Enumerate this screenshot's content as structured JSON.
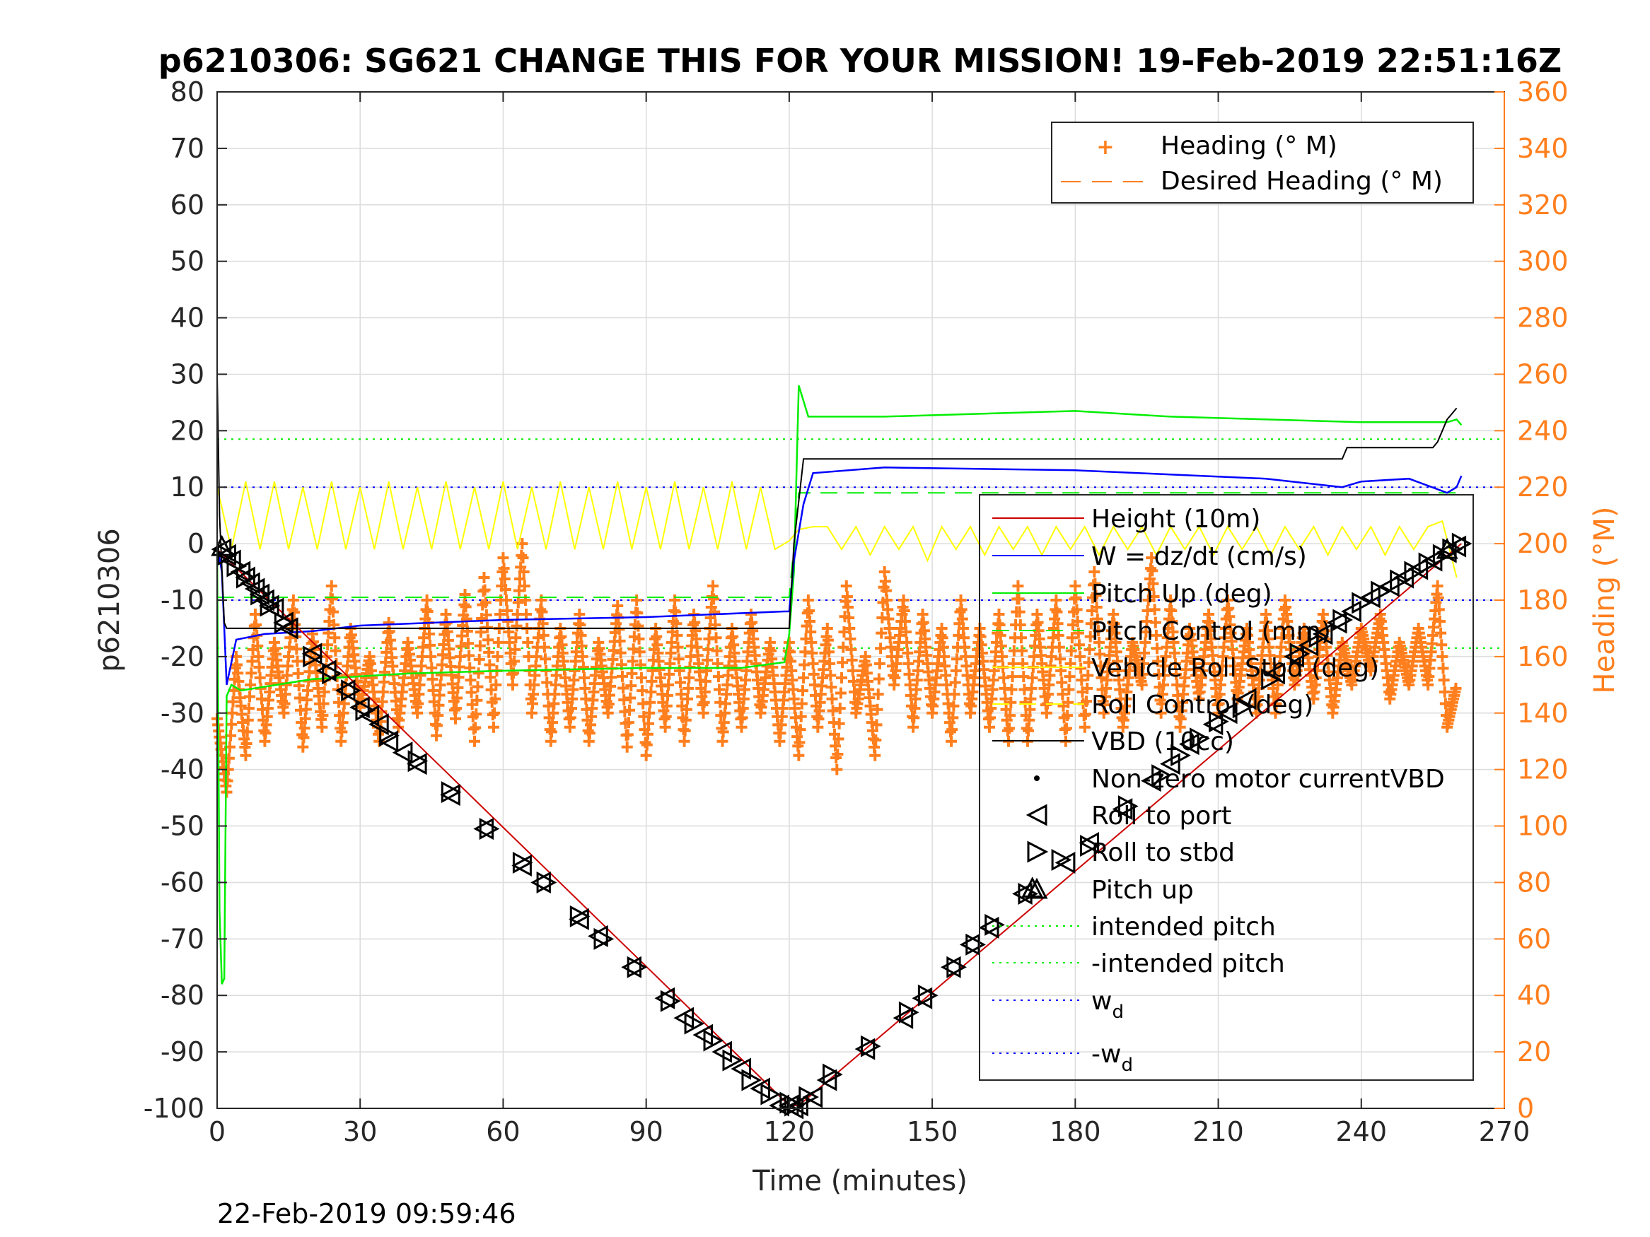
{
  "chart_data": {
    "type": "line",
    "title": "p6210306: SG621 CHANGE THIS FOR YOUR MISSION! 19-Feb-2019 22:51:16Z",
    "footer": "22-Feb-2019 09:59:46",
    "xlabel": "Time (minutes)",
    "ylabel": "p6210306",
    "y2label": "Heading (°M)",
    "xlim": [
      0,
      270
    ],
    "ylim": [
      -100,
      80
    ],
    "y2lim": [
      0,
      360
    ],
    "xticks": [
      "0",
      "30",
      "60",
      "90",
      "120",
      "150",
      "180",
      "210",
      "240",
      "270"
    ],
    "yticks": [
      "80",
      "70",
      "60",
      "50",
      "40",
      "30",
      "20",
      "10",
      "0",
      "-10",
      "-20",
      "-30",
      "-40",
      "-50",
      "-60",
      "-70",
      "-80",
      "-90",
      "-100"
    ],
    "y2ticks": [
      "360",
      "340",
      "320",
      "300",
      "280",
      "260",
      "240",
      "220",
      "200",
      "180",
      "160",
      "140",
      "120",
      "100",
      "80",
      "60",
      "40",
      "20",
      "0"
    ],
    "grid": true,
    "colors": {
      "height": "#cc0000",
      "w": "#0000ff",
      "pitch_up": "#00ee00",
      "pitch_control": "#00ee00",
      "roll": "#ffff00",
      "vbd": "#000000",
      "heading": "#ff7f1e",
      "right_axis": "#ff7f1e"
    },
    "legend_heading": {
      "placement": "top-right",
      "entries": [
        "Heading (° M)",
        "Desired Heading (° M)"
      ]
    },
    "legend_main": {
      "placement": "right",
      "entries": [
        "Height (10m)",
        "W = dz/dt (cm/s)",
        "Pitch Up (deg)",
        "Pitch Control (mm)",
        "Vehicle Roll Stbd (deg)",
        "Roll Control (deg)",
        "VBD (10cc)",
        "Non-zero motor currentVBD",
        "Roll to port",
        "Roll to stbd",
        "Pitch up",
        "intended pitch",
        "-intended pitch",
        "w",
        "-w"
      ],
      "subscript": "d"
    },
    "series": [
      {
        "name": "Height (10m)",
        "x": [
          0,
          120,
          122,
          261
        ],
        "y": [
          -1,
          -99.5,
          -99.5,
          0
        ]
      },
      {
        "name": "W = dz/dt (cm/s)",
        "x": [
          0,
          1,
          2,
          4,
          10,
          20,
          30,
          60,
          90,
          119,
          120,
          121,
          123,
          125,
          140,
          180,
          220,
          236,
          240,
          250,
          258,
          260,
          261
        ],
        "y": [
          0,
          -5,
          -25,
          -17,
          -16,
          -15.5,
          -14.5,
          -13.5,
          -13,
          -12,
          -12,
          -3,
          7,
          12.5,
          13.5,
          13,
          11.5,
          10,
          11,
          11.5,
          9,
          10,
          12
        ]
      },
      {
        "name": "Pitch Up (deg)",
        "x": [
          0,
          0.5,
          1,
          1.5,
          2,
          3,
          5,
          20,
          40,
          60,
          90,
          110,
          119,
          120,
          121,
          122,
          124,
          140,
          160,
          180,
          200,
          240,
          258,
          260,
          261
        ],
        "y": [
          -1,
          -65,
          -78,
          -77,
          -27,
          -25,
          -26,
          -24,
          -23,
          -22.5,
          -22,
          -22,
          -21,
          -16,
          -5,
          28,
          22.5,
          22.5,
          23,
          23.5,
          22.5,
          21.5,
          21.5,
          22,
          21
        ]
      },
      {
        "name": "Pitch Control (mm)",
        "x": [
          0,
          120,
          122,
          261
        ],
        "y": [
          -9.5,
          -9.5,
          9,
          9
        ]
      },
      {
        "name": "Roll Control (deg)",
        "x": [
          0,
          3,
          6,
          9,
          12,
          15,
          18,
          21,
          24,
          27,
          30,
          33,
          36,
          39,
          42,
          45,
          48,
          51,
          54,
          57,
          60,
          63,
          66,
          69,
          72,
          75,
          78,
          81,
          84,
          87,
          90,
          93,
          96,
          99,
          102,
          105,
          108,
          111,
          114,
          117,
          120,
          122,
          125,
          128,
          131,
          134,
          137,
          140,
          143,
          146,
          149,
          152,
          155,
          158,
          161,
          164,
          167,
          170,
          173,
          176,
          179,
          182,
          185,
          188,
          191,
          194,
          197,
          200,
          203,
          206,
          209,
          212,
          215,
          218,
          221,
          224,
          227,
          230,
          233,
          236,
          239,
          242,
          245,
          248,
          251,
          254,
          257,
          260
        ],
        "y": [
          10,
          -1,
          11,
          -1,
          11,
          -1,
          10,
          -1,
          11,
          -1,
          10,
          -1,
          11,
          -1,
          10,
          -1,
          11,
          -1,
          10,
          -1,
          11,
          -1,
          10,
          -1,
          11,
          -1,
          10,
          -1,
          11,
          -1,
          10,
          -1,
          11,
          -1,
          10,
          -1,
          11,
          -1,
          10,
          -1,
          0.5,
          2.5,
          3,
          3,
          -1,
          3,
          -2,
          3,
          -1,
          3,
          -3,
          3,
          -1,
          3,
          -2,
          3,
          -1,
          3,
          -2,
          3,
          -1,
          3,
          -2,
          3,
          -1,
          3,
          -2,
          3,
          -1,
          3,
          -2,
          3,
          -1,
          3,
          -2,
          3,
          -1,
          3,
          -2,
          3,
          -1,
          3,
          -2,
          3,
          -1,
          3,
          4,
          -6
        ]
      },
      {
        "name": "VBD (10cc)",
        "x": [
          0,
          0.5,
          1.5,
          2,
          119,
          120,
          121,
          123,
          175,
          236,
          237,
          255,
          256,
          257,
          258,
          259,
          260
        ],
        "y": [
          30,
          5,
          -14,
          -15,
          -15,
          -15,
          0,
          15,
          15,
          15,
          17,
          17,
          18,
          20,
          22,
          23,
          24
        ]
      },
      {
        "name": "intended pitch",
        "x": [
          0,
          270
        ],
        "y": [
          18.5,
          18.5
        ]
      },
      {
        "name": "-intended pitch",
        "x": [
          0,
          270
        ],
        "y": [
          -18.5,
          -18.5
        ]
      },
      {
        "name": "w",
        "x": [
          0,
          270
        ],
        "y": [
          10,
          10
        ]
      },
      {
        "name": "-w",
        "x": [
          0,
          270
        ],
        "y": [
          -10,
          -10
        ]
      },
      {
        "name": "Heading (° M)",
        "axis": "right",
        "x": [
          0,
          2,
          4,
          6,
          8,
          10,
          12,
          14,
          16,
          18,
          20,
          22,
          24,
          26,
          28,
          30,
          32,
          34,
          36,
          38,
          40,
          42,
          44,
          46,
          48,
          50,
          52,
          54,
          56,
          58,
          60,
          62,
          64,
          66,
          68,
          70,
          72,
          74,
          76,
          78,
          80,
          82,
          84,
          86,
          88,
          90,
          92,
          94,
          96,
          98,
          100,
          102,
          104,
          106,
          108,
          110,
          112,
          114,
          116,
          118,
          120,
          122,
          124,
          126,
          128,
          130,
          132,
          134,
          136,
          138,
          140,
          142,
          144,
          146,
          148,
          150,
          152,
          154,
          156,
          158,
          160,
          162,
          164,
          166,
          168,
          170,
          172,
          174,
          176,
          178,
          180,
          182,
          184,
          186,
          188,
          190,
          192,
          194,
          196,
          198,
          200,
          202,
          204,
          206,
          208,
          210,
          212,
          214,
          216,
          218,
          220,
          222,
          224,
          226,
          228,
          230,
          232,
          234,
          236,
          238,
          240,
          242,
          244,
          246,
          248,
          250,
          252,
          254,
          256,
          258,
          260
        ],
        "y": [
          138,
          112,
          160,
          125,
          175,
          130,
          165,
          140,
          180,
          128,
          168,
          135,
          185,
          130,
          170,
          142,
          160,
          130,
          172,
          135,
          165,
          140,
          180,
          132,
          175,
          138,
          182,
          130,
          188,
          135,
          195,
          150,
          200,
          140,
          180,
          130,
          170,
          135,
          175,
          130,
          165,
          140,
          178,
          128,
          180,
          125,
          170,
          135,
          180,
          130,
          175,
          140,
          185,
          130,
          170,
          135,
          175,
          140,
          165,
          130,
          165,
          125,
          180,
          135,
          170,
          120,
          185,
          140,
          160,
          125,
          190,
          150,
          180,
          135,
          175,
          140,
          170,
          130,
          180,
          140,
          170,
          135,
          175,
          130,
          185,
          130,
          175,
          140,
          180,
          130,
          185,
          135,
          190,
          140,
          175,
          135,
          165,
          150,
          195,
          140,
          180,
          135,
          170,
          145,
          175,
          140,
          180,
          145,
          170,
          140,
          175,
          140,
          180,
          150,
          170,
          145,
          175,
          140,
          165,
          150,
          170,
          155,
          175,
          145,
          165,
          150,
          170,
          150,
          185,
          135,
          150
        ]
      },
      {
        "name": "Desired Heading (° M)",
        "axis": "right",
        "x": [],
        "y": []
      },
      {
        "name": "Roll to port",
        "marker": "triangle-left",
        "x": [
          1,
          2,
          3,
          5,
          6,
          7,
          8,
          9,
          10,
          11,
          12,
          14,
          15,
          20,
          23,
          27,
          30,
          32,
          34,
          36,
          39,
          42,
          49,
          56,
          64,
          68,
          76,
          80,
          87,
          94,
          98,
          102,
          106,
          110,
          114,
          118,
          120,
          121,
          122,
          125,
          128,
          136,
          144,
          148,
          154,
          158,
          162,
          169,
          178,
          183,
          190,
          196,
          200,
          204,
          209,
          212,
          216,
          222,
          226,
          229,
          232,
          235,
          238,
          242,
          246,
          249,
          252,
          255,
          258,
          260
        ],
        "y": [
          -1,
          -2,
          -3,
          -5,
          -6,
          -7,
          -8,
          -9,
          -10,
          -11,
          -11.5,
          -14,
          -15,
          -19.5,
          -22.5,
          -26,
          -29,
          -30.5,
          -32,
          -35,
          -37,
          -39,
          -44.5,
          -50.5,
          -57,
          -60,
          -66.5,
          -69.5,
          -75,
          -80.5,
          -84,
          -87,
          -90,
          -93,
          -96.5,
          -99.5,
          -99.5,
          -100,
          -99.5,
          -98,
          -95,
          -89.5,
          -84,
          -80.5,
          -75,
          -71,
          -68,
          -62,
          -56.5,
          -53,
          -47,
          -42,
          -39,
          -35.5,
          -32,
          -30,
          -27.5,
          -23,
          -20,
          -18,
          -16,
          -14,
          -12,
          -9.5,
          -7.5,
          -6,
          -4.5,
          -3,
          -1.5,
          -0.5
        ]
      },
      {
        "name": "Roll to stbd",
        "marker": "triangle-right",
        "x": [
          2,
          4,
          6,
          9,
          11,
          14,
          20,
          24,
          28,
          31,
          36,
          42,
          49,
          57,
          64,
          69,
          76,
          81,
          88,
          95,
          100,
          104,
          108,
          112,
          116,
          120,
          121,
          124,
          129,
          137,
          145,
          149,
          155,
          159,
          163,
          170,
          177,
          183,
          191,
          198,
          202,
          206,
          210,
          215,
          221,
          227,
          231,
          236,
          240,
          244,
          248,
          251,
          254,
          257,
          259,
          261
        ],
        "y": [
          -2,
          -4,
          -6,
          -9,
          -11,
          -14,
          -20,
          -23,
          -26,
          -29.5,
          -34,
          -38.5,
          -44,
          -50.5,
          -56.5,
          -60,
          -66,
          -70,
          -75,
          -81,
          -85,
          -88,
          -91.5,
          -95,
          -97.5,
          -99,
          -99.5,
          -98,
          -94,
          -89,
          -83,
          -80,
          -75,
          -71,
          -67.5,
          -62,
          -56,
          -53.5,
          -46.5,
          -41,
          -37.5,
          -34.5,
          -31.5,
          -29,
          -24,
          -19.5,
          -16.5,
          -13.5,
          -10.5,
          -8.5,
          -6.5,
          -5,
          -3.5,
          -2,
          -1,
          0
        ]
      },
      {
        "name": "Pitch up",
        "marker": "triangle-up",
        "x": [
          1,
          171,
          258
        ],
        "y": [
          -0.5,
          -61,
          -1
        ]
      }
    ]
  }
}
